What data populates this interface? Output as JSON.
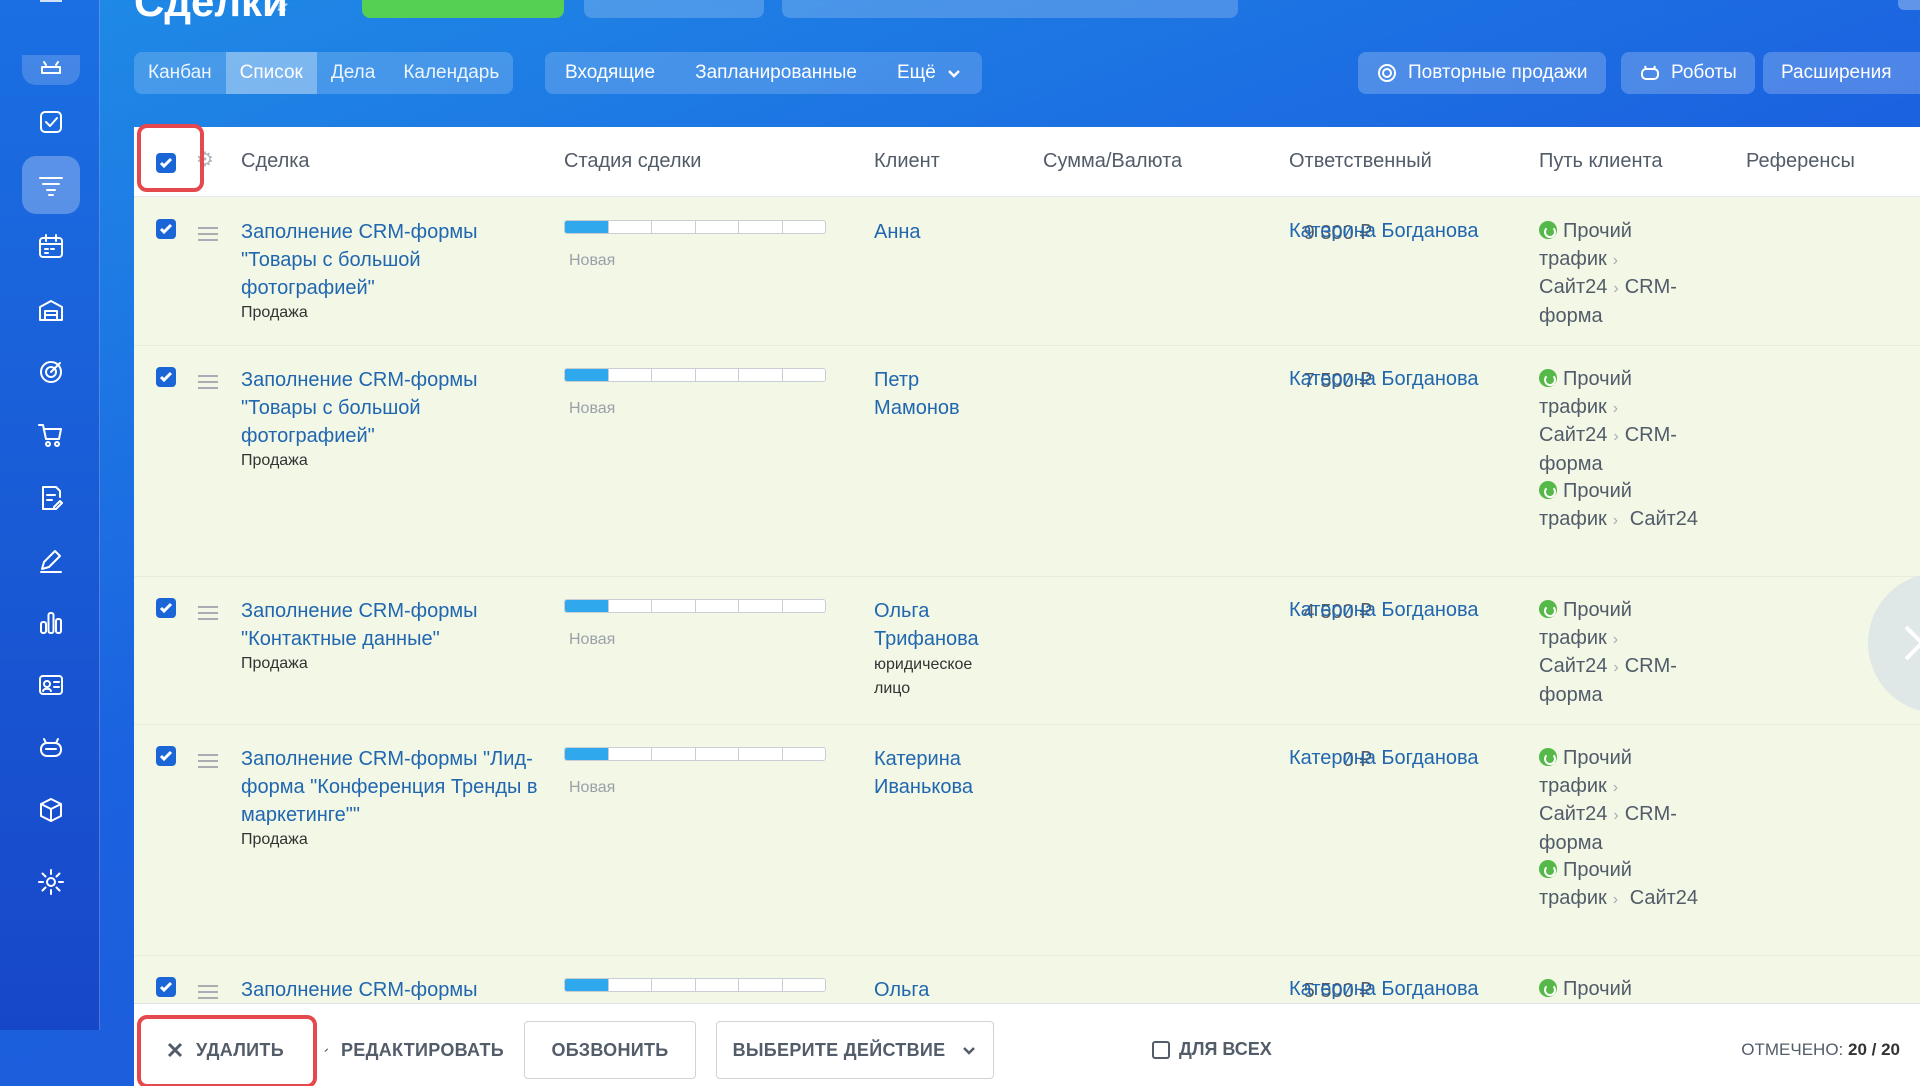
{
  "header": {
    "title": "Сделки"
  },
  "views": {
    "items": [
      "Канбан",
      "Список",
      "Дела",
      "Календарь"
    ],
    "selected": "Список"
  },
  "filters": {
    "incoming": "Входящие",
    "planned": "Запланированные",
    "more": "Ещё"
  },
  "actions_top": {
    "repeat_sales": "Повторные продажи",
    "robots": "Роботы",
    "extensions": "Расширения"
  },
  "columns": [
    "Сделка",
    "Стадия сделки",
    "Клиент",
    "Сумма/Валюта",
    "Ответственный",
    "Путь клиента",
    "Референсы"
  ],
  "rows": [
    {
      "title": "Заполнение CRM-формы \"Товары с большой фотографией\"",
      "type": "Продажа",
      "stage": "Новая",
      "client": "Анна",
      "client_sub": "",
      "sum": "9 300 ₽",
      "responsible": "Катерина Богданова"
    },
    {
      "title": "Заполнение CRM-формы \"Товары с большой фотографией\"",
      "type": "Продажа",
      "stage": "Новая",
      "client": "Петр Мамонов",
      "client_sub": "",
      "sum": "7 500 ₽",
      "responsible": "Катерина Богданова"
    },
    {
      "title": "Заполнение CRM-формы \"Контактные данные\"",
      "type": "Продажа",
      "stage": "Новая",
      "client": "Ольга Трифанова",
      "client_sub": "юридическое лицо",
      "sum": "4 500 ₽",
      "responsible": "Катерина Богданова"
    },
    {
      "title": "Заполнение CRM-формы \"Лид-форма \"Конференция Тренды в маркетинге\"\"",
      "type": "Продажа",
      "stage": "Новая",
      "client": "Катерина Иванькова",
      "client_sub": "",
      "sum": "0 ₽",
      "responsible": "Катерина Богданова"
    },
    {
      "title": "Заполнение CRM-формы",
      "type": "",
      "stage": "",
      "client": "Ольга",
      "client_sub": "",
      "sum": "5 500 ₽",
      "responsible": "Катерина Богданова"
    }
  ],
  "path_labels": {
    "other_traffic": "Прочий трафик",
    "other": "Прочий",
    "site24": "Сайт24",
    "crm_form": "CRM-форма"
  },
  "panel": {
    "delete": "УДАЛИТЬ",
    "edit": "РЕДАКТИРОВАТЬ",
    "call": "ОБЗВОНИТЬ",
    "choose_action": "ВЫБЕРИТЕ ДЕЙСТВИЕ",
    "for_all": "ДЛЯ ВСЕХ",
    "selected_label": "ОТМЕЧЕНО:",
    "selected_value": "20 / 20"
  },
  "colors": {
    "highlight": "#e5484d",
    "link": "#2067b0",
    "row_bg": "#f2f7e6",
    "stage_fill": "#2fa8ee"
  },
  "stage_progress": 0.15
}
